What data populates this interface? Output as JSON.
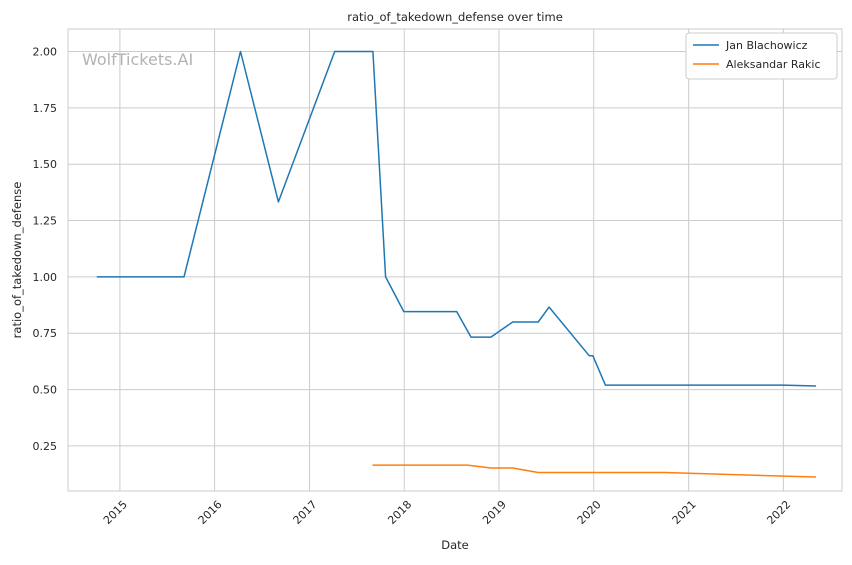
{
  "chart_data": {
    "type": "line",
    "title": "ratio_of_takedown_defense over time",
    "xlabel": "Date",
    "ylabel": "ratio_of_takedown_defense",
    "watermark": "WolfTickets.AI",
    "x_ticks": [
      "2015",
      "2016",
      "2017",
      "2018",
      "2019",
      "2020",
      "2021",
      "2022"
    ],
    "y_ticks": [
      "0.25",
      "0.50",
      "0.75",
      "1.00",
      "1.25",
      "1.50",
      "1.75",
      "2.00"
    ],
    "xlim": [
      "2014-06-15",
      "2022-08-15"
    ],
    "ylim": [
      0.05,
      2.1
    ],
    "grid": true,
    "legend_position": "top-right",
    "series": [
      {
        "name": "Jan Blachowicz",
        "color": "#1f77b4",
        "points": [
          [
            "2014-10-04",
            1.0
          ],
          [
            "2015-09-05",
            1.0
          ],
          [
            "2016-04-10",
            2.0
          ],
          [
            "2016-09-03",
            1.333
          ],
          [
            "2017-04-08",
            2.0
          ],
          [
            "2017-09-02",
            2.0
          ],
          [
            "2017-10-21",
            1.0
          ],
          [
            "2017-12-30",
            0.846
          ],
          [
            "2018-07-22",
            0.846
          ],
          [
            "2018-09-15",
            0.733
          ],
          [
            "2018-12-01",
            0.733
          ],
          [
            "2019-02-23",
            0.8
          ],
          [
            "2019-06-01",
            0.8
          ],
          [
            "2019-07-13",
            0.866
          ],
          [
            "2019-12-15",
            0.65
          ],
          [
            "2019-12-29",
            0.65
          ],
          [
            "2020-02-15",
            0.52
          ],
          [
            "2021-12-30",
            0.52
          ],
          [
            "2022-05-07",
            0.516
          ]
        ]
      },
      {
        "name": "Aleksandar Rakic",
        "color": "#ff7f0e",
        "points": [
          [
            "2017-08-31",
            0.165
          ],
          [
            "2018-09-01",
            0.165
          ],
          [
            "2018-12-01",
            0.152
          ],
          [
            "2019-02-23",
            0.152
          ],
          [
            "2019-06-01",
            0.132
          ],
          [
            "2020-10-01",
            0.132
          ],
          [
            "2021-12-01",
            0.117
          ],
          [
            "2022-05-07",
            0.112
          ]
        ]
      }
    ]
  }
}
